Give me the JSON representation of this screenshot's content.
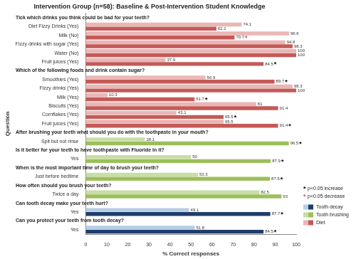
{
  "chart_data": {
    "type": "bar",
    "orientation": "horizontal",
    "title": "Intervention Group (n=58): Baseline & Post-Intervention Student Knowledge",
    "x_label": "% Correct responses",
    "y_label": "Question",
    "xlim": [
      0,
      100
    ],
    "xticks": [
      0,
      10,
      20,
      30,
      40,
      50,
      60,
      70,
      80,
      90,
      100
    ],
    "grid": false,
    "data_labels": true,
    "topics": [
      {
        "name": "Tooth decay",
        "colors": [
          "#b7cde6",
          "#1f3d6b"
        ]
      },
      {
        "name": "Tooth brushing",
        "colors": [
          "#c9dda6",
          "#9cbf5a"
        ]
      },
      {
        "name": "Diet",
        "colors": [
          "#e9b7b5",
          "#c45a57"
        ]
      }
    ],
    "significance": [
      {
        "key": "increase",
        "symbol": "*",
        "label": "p<0.05 increase",
        "color": "#000000"
      },
      {
        "key": "decrease",
        "symbol": "*",
        "label": "p<0.05 decrease",
        "color": "#e0467c"
      }
    ],
    "questions": [
      {
        "text": "Tick which drinks you think could be bad for your teeth?",
        "topic": "Diet",
        "categories": [
          "Diet Fizzy Drinks (Yes)",
          "Milk (No)",
          "Fizzy drinks with sugar (Yes)",
          "Water (No)",
          "Fruit juices (Yes)"
        ],
        "baseline": [
          74.1,
          96.6,
          94.8,
          100,
          37.9
        ],
        "post": [
          62.1,
          70.7,
          98.3,
          100,
          84.5
        ],
        "post_significance": [
          null,
          "decrease",
          null,
          null,
          "increase"
        ]
      },
      {
        "text": "Which of the following foods and drink contain sugar?",
        "topic": "Diet",
        "categories": [
          "Smoothies (Yes)",
          "Fizzy drinks (Yes)",
          "Milk (Yes)",
          "Biscuits (Yes)",
          "Cornflakes (Yes)",
          "Fruit juices (Yes)"
        ],
        "baseline": [
          56.9,
          98.3,
          10.3,
          81,
          43.1,
          65.5
        ],
        "post": [
          89.7,
          100,
          51.7,
          91.4,
          65.5,
          91.4
        ],
        "post_significance": [
          "increase",
          null,
          "increase",
          null,
          "increase",
          "increase"
        ]
      },
      {
        "text": "After brushing your teeth what should you do with the toothpaste in your mouth?",
        "topic": "Tooth brushing",
        "categories": [
          "Spit but not rinse"
        ],
        "baseline": [
          28.1
        ],
        "post": [
          96.5
        ],
        "post_significance": [
          "increase"
        ]
      },
      {
        "text": "Is it better for your teeth to have toothpaste with Fluoride in it?",
        "topic": "Tooth brushing",
        "categories": [
          "Yes"
        ],
        "baseline": [
          50
        ],
        "post": [
          87.9
        ],
        "post_significance": [
          "increase"
        ]
      },
      {
        "text": "When is the most important time of day to brush your teeth?",
        "topic": "Tooth brushing",
        "categories": [
          "Just before bedtime"
        ],
        "baseline": [
          53.3
        ],
        "post": [
          87.5
        ],
        "post_significance": [
          "increase"
        ]
      },
      {
        "text": "How often should you brush your teeth?",
        "topic": "Tooth brushing",
        "categories": [
          "Twice a day"
        ],
        "baseline": [
          82.5
        ],
        "post": [
          93
        ],
        "post_significance": [
          null
        ]
      },
      {
        "text": "Can tooth decay make your teeth hurt?",
        "topic": "Tooth decay",
        "categories": [
          "Yes"
        ],
        "baseline": [
          49.1
        ],
        "post": [
          87.7
        ],
        "post_significance": [
          "increase"
        ]
      },
      {
        "text": "Can you protect your teeth from tooth decay?",
        "topic": "Tooth decay",
        "categories": [
          "Yes"
        ],
        "baseline": [
          51.8
        ],
        "post": [
          84.5
        ],
        "post_significance": [
          "increase"
        ]
      }
    ]
  }
}
